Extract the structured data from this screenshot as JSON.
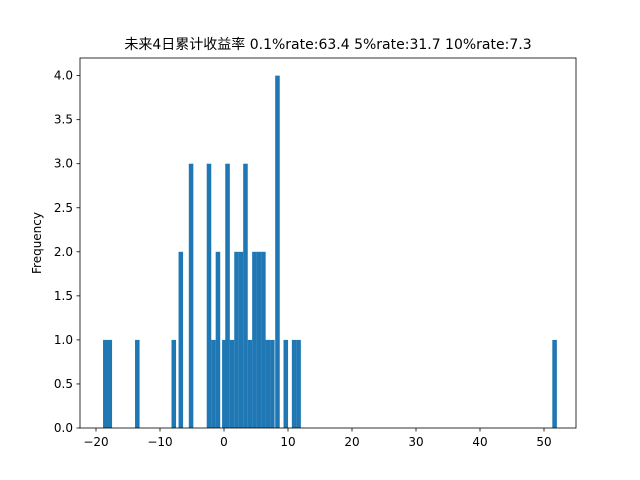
{
  "chart_data": {
    "type": "bar",
    "title": "未来4日累计收益率 0.1%rate:63.4 5%rate:31.7 10%rate:7.3",
    "xlabel": "",
    "ylabel": "Frequency",
    "xlim": [
      -22.5,
      55.0
    ],
    "ylim": [
      0,
      4.2
    ],
    "bin_width": 0.71,
    "bar_color": "#1f77b4",
    "grid": false,
    "xticks": [
      -20,
      -10,
      0,
      10,
      20,
      30,
      40,
      50
    ],
    "xtick_labels": [
      "−20",
      "−10",
      "0",
      "10",
      "20",
      "30",
      "40",
      "50"
    ],
    "yticks": [
      0.0,
      0.5,
      1.0,
      1.5,
      2.0,
      2.5,
      3.0,
      3.5,
      4.0
    ],
    "ytick_labels": [
      "0.0",
      "0.5",
      "1.0",
      "1.5",
      "2.0",
      "2.5",
      "3.0",
      "3.5",
      "4.0"
    ],
    "bins": [
      {
        "x": -18.9,
        "count": 1
      },
      {
        "x": -18.2,
        "count": 1
      },
      {
        "x": -13.9,
        "count": 1
      },
      {
        "x": -8.2,
        "count": 1
      },
      {
        "x": -7.1,
        "count": 2
      },
      {
        "x": -5.5,
        "count": 3
      },
      {
        "x": -2.7,
        "count": 3
      },
      {
        "x": -2.0,
        "count": 1
      },
      {
        "x": -1.3,
        "count": 2
      },
      {
        "x": -0.3,
        "count": 1
      },
      {
        "x": 0.2,
        "count": 3
      },
      {
        "x": 0.9,
        "count": 1
      },
      {
        "x": 1.6,
        "count": 2
      },
      {
        "x": 2.3,
        "count": 2
      },
      {
        "x": 3.0,
        "count": 3
      },
      {
        "x": 3.7,
        "count": 1
      },
      {
        "x": 4.4,
        "count": 2
      },
      {
        "x": 5.1,
        "count": 2
      },
      {
        "x": 5.8,
        "count": 2
      },
      {
        "x": 6.5,
        "count": 1
      },
      {
        "x": 7.2,
        "count": 1
      },
      {
        "x": 8.0,
        "count": 4
      },
      {
        "x": 9.3,
        "count": 1
      },
      {
        "x": 10.6,
        "count": 1
      },
      {
        "x": 11.3,
        "count": 1
      },
      {
        "x": 51.3,
        "count": 1
      }
    ]
  }
}
